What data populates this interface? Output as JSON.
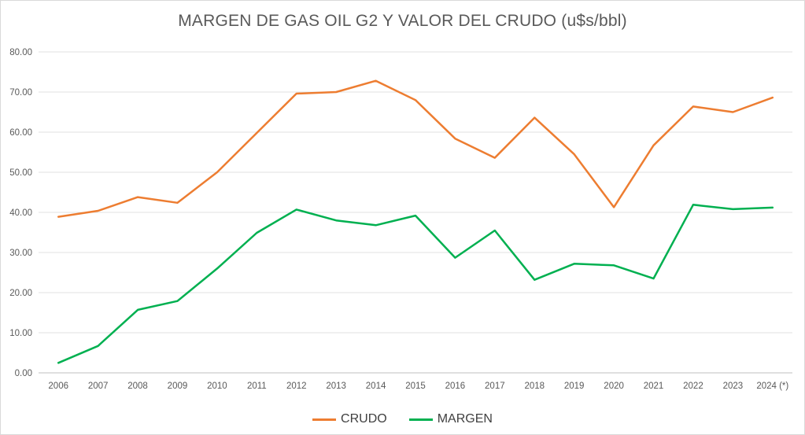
{
  "chart_data": {
    "type": "line",
    "title": "MARGEN DE GAS OIL G2 Y VALOR DEL CRUDO (u$s/bbl)",
    "categories": [
      "2006",
      "2007",
      "2008",
      "2009",
      "2010",
      "2011",
      "2012",
      "2013",
      "2014",
      "2015",
      "2016",
      "2017",
      "2018",
      "2019",
      "2020",
      "2021",
      "2022",
      "2023",
      "2024 (*)"
    ],
    "series": [
      {
        "name": "CRUDO",
        "color": "#ED7D31",
        "values": [
          38.9,
          40.4,
          43.8,
          42.4,
          50.0,
          59.8,
          69.6,
          70.0,
          72.8,
          68.0,
          58.4,
          53.6,
          63.6,
          54.5,
          41.3,
          56.7,
          66.4,
          65.0,
          68.6
        ]
      },
      {
        "name": "MARGEN",
        "color": "#00B050",
        "values": [
          2.5,
          6.7,
          15.7,
          17.9,
          26.0,
          34.9,
          40.7,
          38.0,
          36.8,
          39.2,
          28.7,
          35.5,
          23.2,
          27.2,
          26.8,
          23.5,
          41.9,
          40.8,
          41.2
        ]
      }
    ],
    "y_axis": {
      "min": 0,
      "max": 80,
      "step": 10,
      "tick_labels": [
        "0.00",
        "10.00",
        "20.00",
        "30.00",
        "40.00",
        "50.00",
        "60.00",
        "70.00",
        "80.00"
      ]
    },
    "grid": true,
    "legend_position": "bottom",
    "colors": {
      "gridline": "#E2E2E2",
      "axis_line": "#BFBFBF",
      "tick_text": "#595959",
      "title_text": "#595959",
      "legend_text": "#404040",
      "background": "#FFFFFF"
    }
  }
}
